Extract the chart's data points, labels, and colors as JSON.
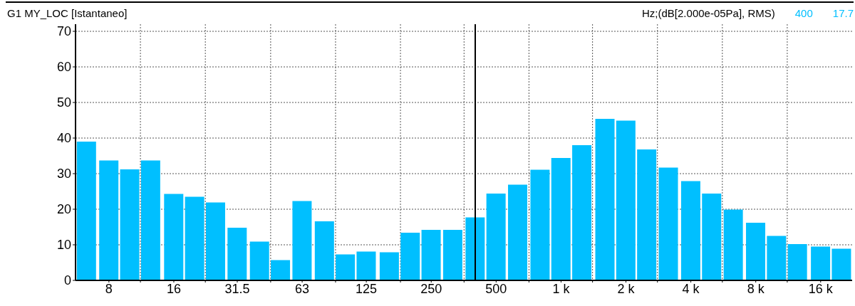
{
  "chart_data": {
    "type": "bar",
    "title": "G1 MY_LOC [Istantaneo]",
    "subtitle": "Hz;(dB[2.000e-05Pa], RMS)",
    "annotations": [
      "400",
      "17.7"
    ],
    "x": [
      6.3,
      8,
      10,
      12.5,
      16,
      20,
      25,
      31.5,
      40,
      50,
      63,
      80,
      100,
      125,
      160,
      200,
      250,
      315,
      400,
      500,
      630,
      800,
      1000,
      1250,
      1600,
      2000,
      2500,
      3150,
      4000,
      5000,
      6300,
      8000,
      10000,
      12500,
      16000,
      20000
    ],
    "values": [
      39.0,
      33.7,
      31.2,
      33.7,
      24.3,
      23.5,
      21.9,
      14.8,
      10.9,
      5.7,
      22.3,
      16.6,
      7.3,
      8.1,
      7.9,
      13.4,
      14.2,
      14.2,
      17.7,
      24.4,
      26.9,
      31.1,
      34.4,
      38.0,
      45.4,
      44.9,
      36.8,
      31.7,
      27.9,
      24.4,
      19.9,
      16.2,
      12.5,
      10.2,
      9.5,
      8.9
    ],
    "color": "#00bfff",
    "log": "x",
    "xlim": [
      5.6,
      22400
    ],
    "xticks": [
      8,
      {
        "value": 11.2,
        "label": null
      },
      16,
      {
        "value": 22.4,
        "label": null
      },
      31.5,
      {
        "value": 45,
        "label": null
      },
      63,
      {
        "value": 90,
        "label": null
      },
      125,
      {
        "value": 180,
        "label": null
      },
      250,
      {
        "value": 355,
        "label": null
      },
      500,
      {
        "value": 710,
        "label": null
      },
      {
        "value": 1000,
        "label": "1 k"
      },
      {
        "value": 1400,
        "label": null
      },
      {
        "value": 2000,
        "label": "2 k"
      },
      {
        "value": 2800,
        "label": null
      },
      {
        "value": 4000,
        "label": "4 k"
      },
      {
        "value": 5600,
        "label": null
      },
      {
        "value": 8000,
        "label": "8 k"
      },
      {
        "value": 11200,
        "label": null
      },
      {
        "value": 16000,
        "label": "16 k"
      }
    ],
    "ylim": [
      0,
      72
    ],
    "yticks": [
      0,
      10,
      20,
      30,
      40,
      50,
      60,
      70
    ],
    "grid": true,
    "ref_lines": [
      {
        "axis": "x",
        "value": 400,
        "color": "#000000"
      }
    ]
  }
}
